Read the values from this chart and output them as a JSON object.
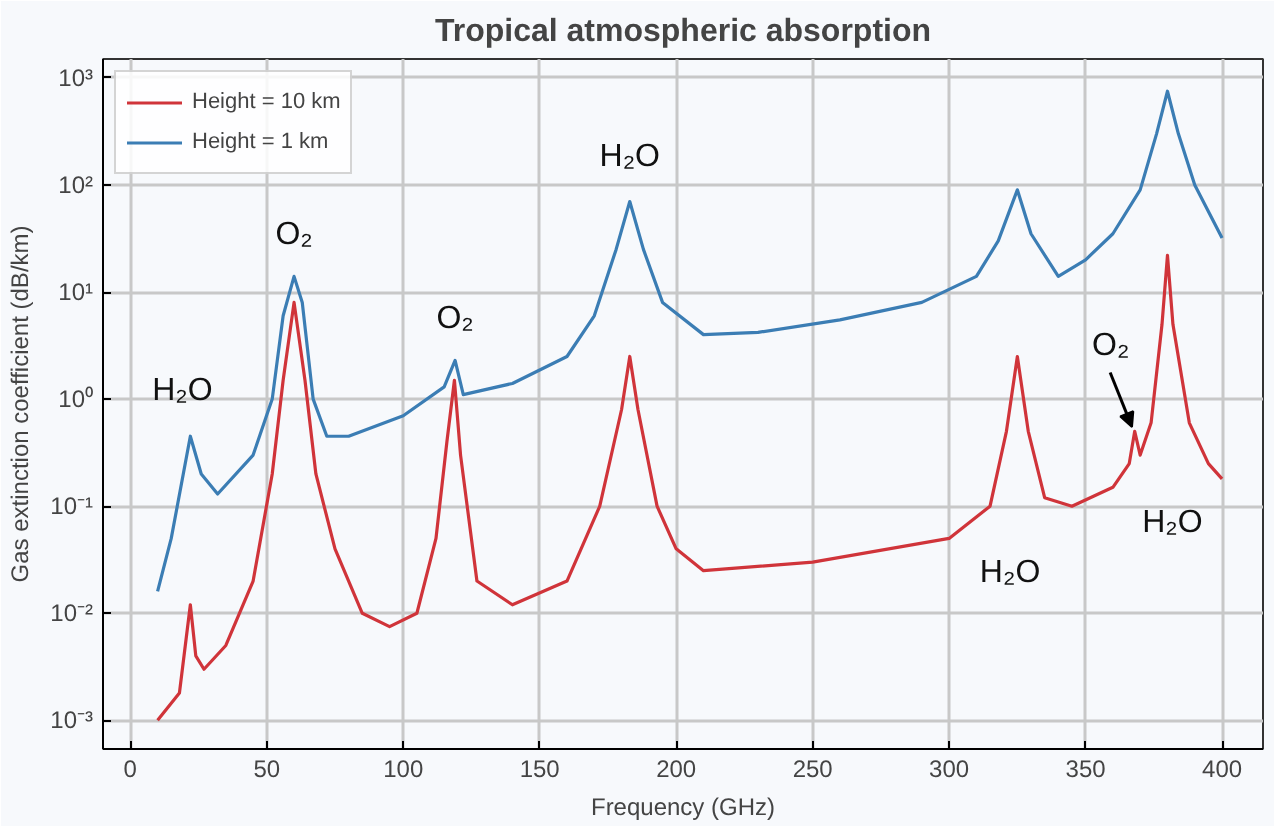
{
  "chart_data": {
    "type": "line",
    "title": "Tropical atmospheric absorption",
    "xlabel": "Frequency (GHz)",
    "ylabel": "Gas extinction coefficient (dB/km)",
    "log": "y",
    "grid": true,
    "legend": "top left",
    "line_style": "solid",
    "marker": "none",
    "xlim": [
      -10,
      415
    ],
    "ylim": [
      0.00054,
      1500
    ],
    "xticks": [
      0,
      50,
      100,
      150,
      200,
      250,
      300,
      350,
      400
    ],
    "yticks": [
      {
        "value": 0.001,
        "label": "10⁻³"
      },
      {
        "value": 0.01,
        "label": "10⁻²"
      },
      {
        "value": 0.1,
        "label": "10⁻¹"
      },
      {
        "value": 1,
        "label": "10⁰"
      },
      {
        "value": 10,
        "label": "10¹"
      },
      {
        "value": 100,
        "label": "10²"
      },
      {
        "value": 1000,
        "label": "10³"
      }
    ],
    "series": [
      {
        "name": "Height = 10 km",
        "color": "#d0343a",
        "x": [
          10,
          18,
          22,
          24,
          27,
          35,
          45,
          52,
          56,
          60,
          64,
          68,
          75,
          85,
          95,
          105,
          112,
          116,
          118.75,
          121,
          127,
          140,
          160,
          172,
          180,
          183,
          186,
          193,
          200,
          210,
          250,
          300,
          315,
          321,
          325,
          329,
          335,
          345,
          360,
          366,
          368,
          370,
          374,
          378,
          380,
          382,
          388,
          395,
          400
        ],
        "values": [
          0.001,
          0.0018,
          0.012,
          0.004,
          0.003,
          0.005,
          0.02,
          0.2,
          1.5,
          8,
          1.5,
          0.2,
          0.04,
          0.01,
          0.0075,
          0.01,
          0.05,
          0.4,
          1.5,
          0.3,
          0.02,
          0.012,
          0.02,
          0.1,
          0.8,
          2.5,
          0.8,
          0.1,
          0.04,
          0.025,
          0.03,
          0.05,
          0.1,
          0.5,
          2.5,
          0.5,
          0.12,
          0.1,
          0.15,
          0.25,
          0.5,
          0.3,
          0.6,
          5,
          22,
          5,
          0.6,
          0.25,
          0.18
        ]
      },
      {
        "name": "Height = 1 km",
        "color": "#3b7db4",
        "x": [
          10,
          15,
          22,
          26,
          32,
          45,
          52,
          56,
          60,
          63,
          67,
          72,
          80,
          100,
          115,
          119,
          122,
          140,
          160,
          170,
          178,
          183,
          188,
          195,
          210,
          230,
          260,
          290,
          310,
          318,
          325,
          330,
          340,
          350,
          360,
          370,
          376,
          380,
          384,
          390,
          400
        ],
        "values": [
          0.016,
          0.05,
          0.45,
          0.2,
          0.13,
          0.3,
          1,
          6,
          14,
          8,
          1,
          0.45,
          0.45,
          0.7,
          1.3,
          2.3,
          1.1,
          1.4,
          2.5,
          6,
          25,
          70,
          25,
          8,
          4,
          4.2,
          5.5,
          8,
          14,
          30,
          90,
          35,
          14,
          20,
          35,
          90,
          300,
          750,
          300,
          100,
          32
        ]
      }
    ],
    "annotations": [
      {
        "text": "H₂O",
        "x": 22,
        "y": 0.45
      },
      {
        "text": "O₂",
        "x": 60,
        "y": 14
      },
      {
        "text": "O₂",
        "x": 119,
        "y": 2.3
      },
      {
        "text": "H₂O",
        "x": 183,
        "y": 70
      },
      {
        "text": "H₂O",
        "x": 315,
        "y": 0.1
      },
      {
        "text": "H₂O",
        "x": 395,
        "y": 0.25
      },
      {
        "text": "O₂",
        "x": 368,
        "y": 0.5
      }
    ]
  }
}
